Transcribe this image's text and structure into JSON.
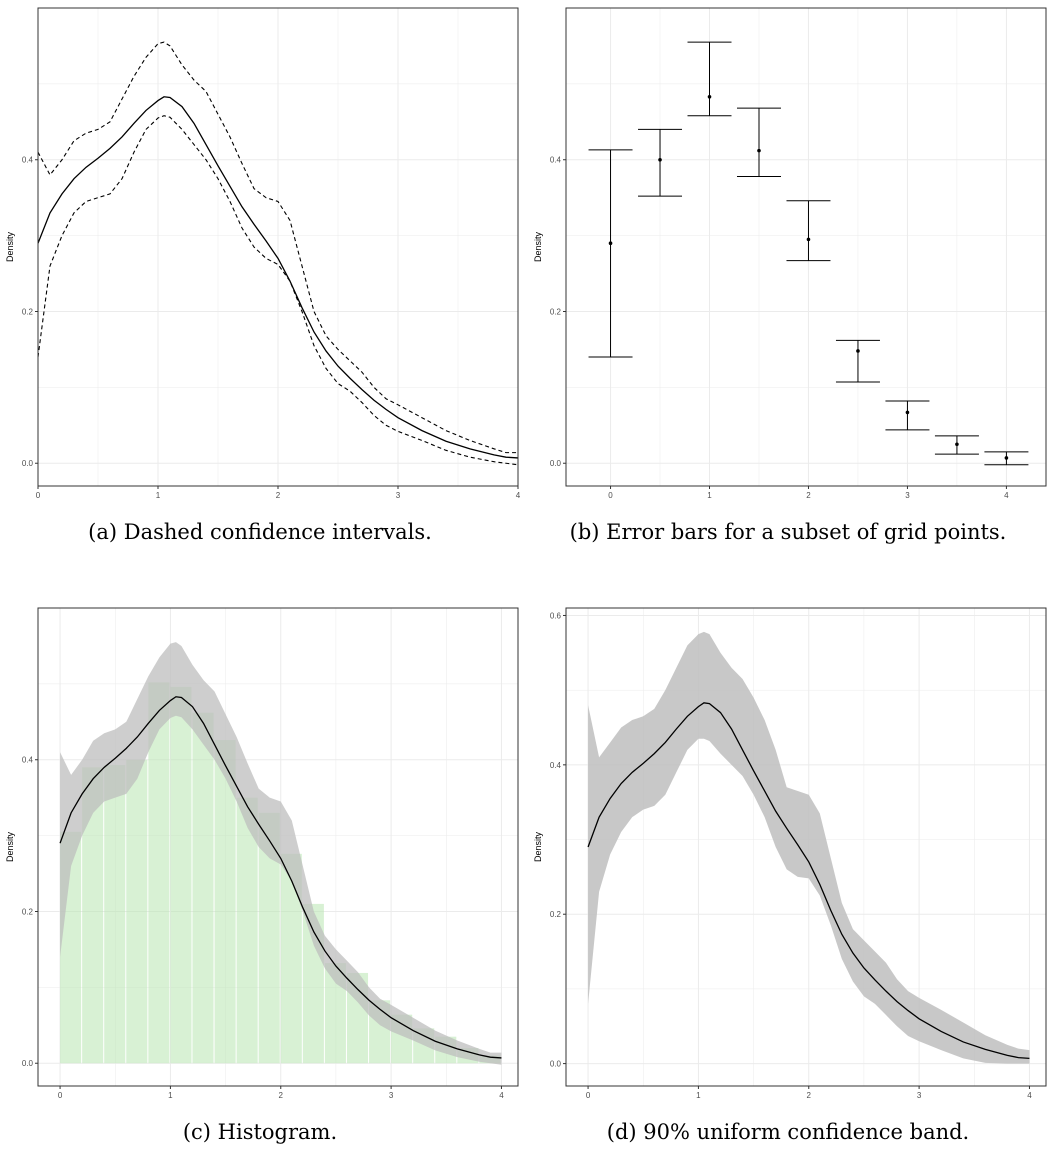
{
  "colors": {
    "panel_border": "#333333",
    "grid": "#ebebeb",
    "line": "#000000",
    "band": "#bebebe",
    "hist_fill": "#b8e6b0"
  },
  "panels": [
    {
      "caption": "(a) Dashed confidence intervals.",
      "chart_data": {
        "type": "line",
        "ylabel": "Density",
        "xlim": [
          0,
          4
        ],
        "ylim": [
          -0.03,
          0.6
        ],
        "xticks": [
          "0",
          "1",
          "2",
          "3",
          "4"
        ],
        "yticks": [
          "0.0",
          "0.2",
          "0.4"
        ],
        "grid": true,
        "estimate_style": "solid",
        "interval_style": "dashed",
        "x": [
          0,
          0.1,
          0.2,
          0.3,
          0.4,
          0.5,
          0.6,
          0.7,
          0.8,
          0.9,
          1.0,
          1.05,
          1.1,
          1.2,
          1.3,
          1.4,
          1.5,
          1.6,
          1.7,
          1.8,
          1.9,
          2.0,
          2.1,
          2.2,
          2.3,
          2.4,
          2.5,
          2.6,
          2.7,
          2.8,
          2.9,
          3.0,
          3.2,
          3.4,
          3.6,
          3.8,
          3.9,
          4.0
        ],
        "estimate": [
          0.29,
          0.33,
          0.355,
          0.375,
          0.39,
          0.402,
          0.415,
          0.43,
          0.448,
          0.465,
          0.478,
          0.483,
          0.482,
          0.47,
          0.448,
          0.42,
          0.392,
          0.365,
          0.338,
          0.315,
          0.293,
          0.27,
          0.24,
          0.205,
          0.173,
          0.148,
          0.128,
          0.112,
          0.097,
          0.083,
          0.071,
          0.06,
          0.043,
          0.029,
          0.019,
          0.011,
          0.008,
          0.007
        ],
        "lower": [
          0.14,
          0.26,
          0.3,
          0.33,
          0.345,
          0.35,
          0.355,
          0.375,
          0.41,
          0.44,
          0.455,
          0.458,
          0.456,
          0.44,
          0.42,
          0.4,
          0.375,
          0.345,
          0.31,
          0.285,
          0.27,
          0.262,
          0.24,
          0.2,
          0.155,
          0.125,
          0.105,
          0.095,
          0.08,
          0.063,
          0.05,
          0.042,
          0.03,
          0.017,
          0.008,
          0.002,
          0.0,
          -0.002
        ],
        "upper": [
          0.41,
          0.38,
          0.4,
          0.425,
          0.435,
          0.44,
          0.45,
          0.48,
          0.51,
          0.535,
          0.553,
          0.555,
          0.55,
          0.525,
          0.505,
          0.49,
          0.46,
          0.43,
          0.395,
          0.362,
          0.35,
          0.345,
          0.32,
          0.26,
          0.2,
          0.168,
          0.15,
          0.135,
          0.12,
          0.1,
          0.085,
          0.077,
          0.06,
          0.043,
          0.03,
          0.019,
          0.014,
          0.014
        ]
      }
    },
    {
      "caption": "(b) Error bars for a subset of grid points.",
      "chart_data": {
        "type": "scatter",
        "ylabel": "Density",
        "xlim": [
          -0.45,
          4.4
        ],
        "ylim": [
          -0.03,
          0.6
        ],
        "xticks": [
          "0",
          "1",
          "2",
          "3",
          "4"
        ],
        "yticks": [
          "0.0",
          "0.2",
          "0.4"
        ],
        "grid": true,
        "x": [
          0,
          0.5,
          1.0,
          1.5,
          2.0,
          2.5,
          3.0,
          3.5,
          4.0
        ],
        "estimate": [
          0.29,
          0.4,
          0.483,
          0.412,
          0.295,
          0.148,
          0.067,
          0.025,
          0.007
        ],
        "lower": [
          0.14,
          0.352,
          0.458,
          0.378,
          0.267,
          0.107,
          0.044,
          0.012,
          -0.002
        ],
        "upper": [
          0.413,
          0.44,
          0.555,
          0.468,
          0.346,
          0.162,
          0.082,
          0.036,
          0.015
        ]
      }
    },
    {
      "caption": "(c) Histogram.",
      "chart_data": {
        "type": "area",
        "ylabel": "Density",
        "xlim": [
          -0.2,
          4.15
        ],
        "ylim": [
          -0.03,
          0.6
        ],
        "xticks": [
          "0",
          "1",
          "2",
          "3",
          "4"
        ],
        "yticks": [
          "0.0",
          "0.2",
          "0.4"
        ],
        "grid": true,
        "histogram": {
          "bin_width": 0.2,
          "bin_starts": [
            0,
            0.2,
            0.4,
            0.6,
            0.8,
            1.0,
            1.2,
            1.4,
            1.6,
            1.8,
            2.0,
            2.2,
            2.4,
            2.6,
            2.8,
            3.0,
            3.2,
            3.4,
            3.6,
            3.8
          ],
          "values": [
            0.305,
            0.39,
            0.393,
            0.4,
            0.502,
            0.496,
            0.462,
            0.426,
            0.35,
            0.33,
            0.276,
            0.21,
            0.132,
            0.119,
            0.083,
            0.064,
            0.046,
            0.035,
            0.02,
            0.01
          ]
        },
        "x": [
          0,
          0.1,
          0.2,
          0.3,
          0.4,
          0.5,
          0.6,
          0.7,
          0.8,
          0.9,
          1.0,
          1.05,
          1.1,
          1.2,
          1.3,
          1.4,
          1.5,
          1.6,
          1.7,
          1.8,
          1.9,
          2.0,
          2.1,
          2.2,
          2.3,
          2.4,
          2.5,
          2.6,
          2.7,
          2.8,
          2.9,
          3.0,
          3.2,
          3.4,
          3.6,
          3.8,
          3.9,
          4.0
        ],
        "estimate": [
          0.29,
          0.33,
          0.355,
          0.375,
          0.39,
          0.402,
          0.415,
          0.43,
          0.448,
          0.465,
          0.478,
          0.483,
          0.482,
          0.47,
          0.448,
          0.42,
          0.392,
          0.365,
          0.338,
          0.315,
          0.293,
          0.27,
          0.24,
          0.205,
          0.173,
          0.148,
          0.128,
          0.112,
          0.097,
          0.083,
          0.071,
          0.06,
          0.043,
          0.029,
          0.019,
          0.011,
          0.008,
          0.007
        ],
        "lower": [
          0.14,
          0.26,
          0.3,
          0.33,
          0.345,
          0.35,
          0.355,
          0.375,
          0.41,
          0.44,
          0.455,
          0.458,
          0.456,
          0.44,
          0.42,
          0.4,
          0.375,
          0.345,
          0.31,
          0.285,
          0.27,
          0.262,
          0.24,
          0.2,
          0.155,
          0.125,
          0.105,
          0.095,
          0.08,
          0.063,
          0.05,
          0.042,
          0.03,
          0.017,
          0.008,
          0.002,
          0.0,
          -0.002
        ],
        "upper": [
          0.41,
          0.38,
          0.4,
          0.425,
          0.435,
          0.44,
          0.45,
          0.48,
          0.51,
          0.535,
          0.553,
          0.555,
          0.55,
          0.525,
          0.505,
          0.49,
          0.46,
          0.43,
          0.395,
          0.362,
          0.35,
          0.345,
          0.32,
          0.26,
          0.2,
          0.168,
          0.15,
          0.135,
          0.12,
          0.1,
          0.085,
          0.077,
          0.06,
          0.043,
          0.03,
          0.019,
          0.014,
          0.014
        ]
      }
    },
    {
      "caption": "(d) 90% uniform confidence band.",
      "chart_data": {
        "type": "area",
        "ylabel": "Density",
        "xlim": [
          -0.2,
          4.15
        ],
        "ylim": [
          -0.03,
          0.61
        ],
        "xticks": [
          "0",
          "1",
          "2",
          "3",
          "4"
        ],
        "yticks": [
          "0.0",
          "0.2",
          "0.4",
          "0.6"
        ],
        "grid": true,
        "x": [
          0,
          0.1,
          0.2,
          0.3,
          0.4,
          0.5,
          0.6,
          0.7,
          0.8,
          0.9,
          1.0,
          1.05,
          1.1,
          1.2,
          1.3,
          1.4,
          1.5,
          1.6,
          1.7,
          1.8,
          1.9,
          2.0,
          2.1,
          2.2,
          2.3,
          2.4,
          2.5,
          2.6,
          2.7,
          2.8,
          2.9,
          3.0,
          3.2,
          3.4,
          3.6,
          3.8,
          3.9,
          4.0
        ],
        "estimate": [
          0.29,
          0.33,
          0.355,
          0.375,
          0.39,
          0.402,
          0.415,
          0.43,
          0.448,
          0.465,
          0.478,
          0.483,
          0.482,
          0.47,
          0.448,
          0.42,
          0.392,
          0.365,
          0.338,
          0.315,
          0.293,
          0.27,
          0.24,
          0.205,
          0.173,
          0.148,
          0.128,
          0.112,
          0.097,
          0.083,
          0.071,
          0.06,
          0.043,
          0.029,
          0.019,
          0.011,
          0.008,
          0.007
        ],
        "lower": [
          0.08,
          0.23,
          0.28,
          0.31,
          0.33,
          0.34,
          0.345,
          0.36,
          0.39,
          0.42,
          0.435,
          0.435,
          0.432,
          0.415,
          0.4,
          0.385,
          0.36,
          0.33,
          0.29,
          0.26,
          0.25,
          0.248,
          0.225,
          0.185,
          0.14,
          0.11,
          0.09,
          0.08,
          0.065,
          0.05,
          0.037,
          0.03,
          0.018,
          0.007,
          0.001,
          0.0,
          0.0,
          0.0
        ],
        "upper": [
          0.48,
          0.41,
          0.43,
          0.45,
          0.46,
          0.465,
          0.475,
          0.5,
          0.53,
          0.56,
          0.575,
          0.578,
          0.575,
          0.55,
          0.53,
          0.515,
          0.49,
          0.46,
          0.42,
          0.37,
          0.365,
          0.36,
          0.335,
          0.275,
          0.215,
          0.18,
          0.165,
          0.15,
          0.135,
          0.113,
          0.097,
          0.088,
          0.072,
          0.055,
          0.038,
          0.025,
          0.02,
          0.018
        ]
      }
    }
  ]
}
